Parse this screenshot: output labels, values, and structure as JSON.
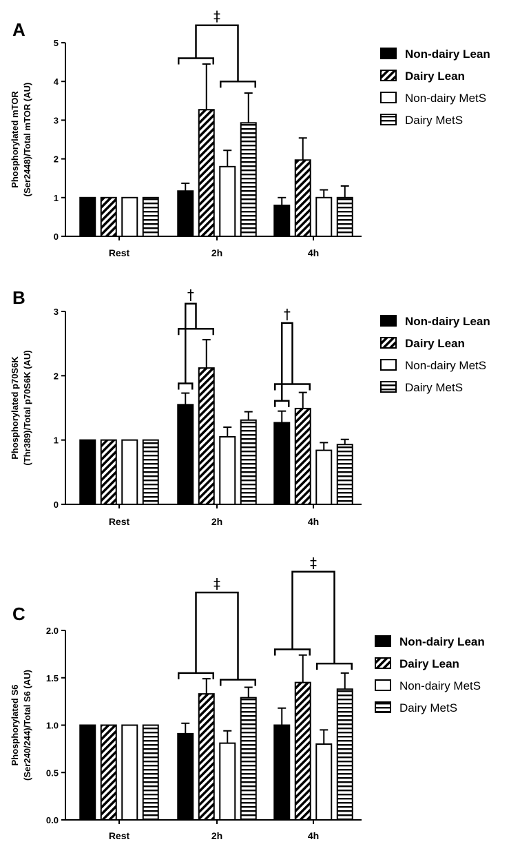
{
  "series_styles": [
    {
      "fill": "solid",
      "color": "#000000"
    },
    {
      "fill": "diagonal",
      "color": "#000000"
    },
    {
      "fill": "open",
      "color": "#000000"
    },
    {
      "fill": "horizontal",
      "color": "#000000"
    }
  ],
  "chart_data": [
    {
      "type": "bar",
      "panel_label": "A",
      "ylabel_lines": [
        "Phosphorylated mTOR",
        "(Ser2448)/Total mTOR (AU)"
      ],
      "categories": [
        "Rest",
        "2h",
        "4h"
      ],
      "ylim": [
        0,
        5
      ],
      "yticks": [
        "0",
        "1",
        "2",
        "3",
        "4",
        "5"
      ],
      "legend_position": "right",
      "series": [
        {
          "name": "Non-dairy Lean",
          "bold": true,
          "values": [
            1.0,
            1.17,
            0.8
          ],
          "errors": [
            0,
            0.2,
            0.2
          ]
        },
        {
          "name": "Dairy Lean",
          "bold": true,
          "values": [
            1.0,
            3.27,
            1.97
          ],
          "errors": [
            0,
            1.18,
            0.57
          ]
        },
        {
          "name": "Non-dairy MetS",
          "bold": false,
          "values": [
            1.0,
            1.8,
            1.0
          ],
          "errors": [
            0,
            0.42,
            0.2
          ]
        },
        {
          "name": "Dairy MetS",
          "bold": false,
          "values": [
            1.0,
            2.93,
            1.0
          ],
          "errors": [
            0,
            0.77,
            0.3
          ]
        }
      ],
      "annotations": [
        {
          "symbol": "‡",
          "category": 1,
          "left": [
            0,
            1
          ],
          "right": [
            2,
            3
          ],
          "left_y": 4.6,
          "right_y": 4.0,
          "top_y": 5.45
        }
      ]
    },
    {
      "type": "bar",
      "panel_label": "B",
      "ylabel_lines": [
        "Phosphorylated p70S6K",
        "(Thr389)/Total p70S6K (AU)"
      ],
      "categories": [
        "Rest",
        "2h",
        "4h"
      ],
      "ylim": [
        0,
        3
      ],
      "yticks": [
        "0",
        "1",
        "2",
        "3"
      ],
      "legend_position": "right",
      "series": [
        {
          "name": "Non-dairy Lean",
          "bold": true,
          "values": [
            1.0,
            1.55,
            1.27
          ],
          "errors": [
            0,
            0.18,
            0.18
          ]
        },
        {
          "name": "Dairy Lean",
          "bold": true,
          "values": [
            1.0,
            2.12,
            1.49
          ],
          "errors": [
            0,
            0.44,
            0.25
          ]
        },
        {
          "name": "Non-dairy MetS",
          "bold": false,
          "values": [
            1.0,
            1.05,
            0.84
          ],
          "errors": [
            0,
            0.15,
            0.12
          ]
        },
        {
          "name": "Dairy MetS",
          "bold": false,
          "values": [
            1.0,
            1.31,
            0.93
          ],
          "errors": [
            0,
            0.13,
            0.08
          ]
        }
      ],
      "annotations": [
        {
          "symbol": "†",
          "category": 1,
          "left": [
            0
          ],
          "right": [
            0,
            1
          ],
          "left_y": 1.88,
          "right_y": 2.73,
          "top_y": 3.12
        },
        {
          "symbol": "†",
          "category": 2,
          "left": [
            0
          ],
          "right": [
            0,
            1
          ],
          "left_y": 1.61,
          "right_y": 1.87,
          "top_y": 2.82
        }
      ]
    },
    {
      "type": "bar",
      "panel_label": "C",
      "ylabel_lines": [
        "Phosphorylated S6",
        "(Ser240/244)/Total S6 (AU)"
      ],
      "categories": [
        "Rest",
        "2h",
        "4h"
      ],
      "ylim": [
        0,
        2.0
      ],
      "yticks": [
        "0.0",
        "0.5",
        "1.0",
        "1.5",
        "2.0"
      ],
      "legend_position": "right",
      "series": [
        {
          "name": "Non-dairy Lean",
          "bold": true,
          "values": [
            1.0,
            0.91,
            1.0
          ],
          "errors": [
            0,
            0.11,
            0.18
          ]
        },
        {
          "name": "Dairy Lean",
          "bold": true,
          "values": [
            1.0,
            1.33,
            1.45
          ],
          "errors": [
            0,
            0.16,
            0.29
          ]
        },
        {
          "name": "Non-dairy MetS",
          "bold": false,
          "values": [
            1.0,
            0.81,
            0.8
          ],
          "errors": [
            0,
            0.13,
            0.15
          ]
        },
        {
          "name": "Dairy MetS",
          "bold": false,
          "values": [
            1.0,
            1.29,
            1.38
          ],
          "errors": [
            0,
            0.11,
            0.17
          ]
        }
      ],
      "annotations": [
        {
          "symbol": "‡",
          "category": 1,
          "left": [
            0,
            1
          ],
          "right": [
            2,
            3
          ],
          "left_y": 1.55,
          "right_y": 1.48,
          "top_y": 2.4
        },
        {
          "symbol": "‡",
          "category": 2,
          "left": [
            0,
            1
          ],
          "right": [
            2,
            3
          ],
          "left_y": 1.8,
          "right_y": 1.65,
          "top_y": 2.62
        }
      ]
    }
  ]
}
